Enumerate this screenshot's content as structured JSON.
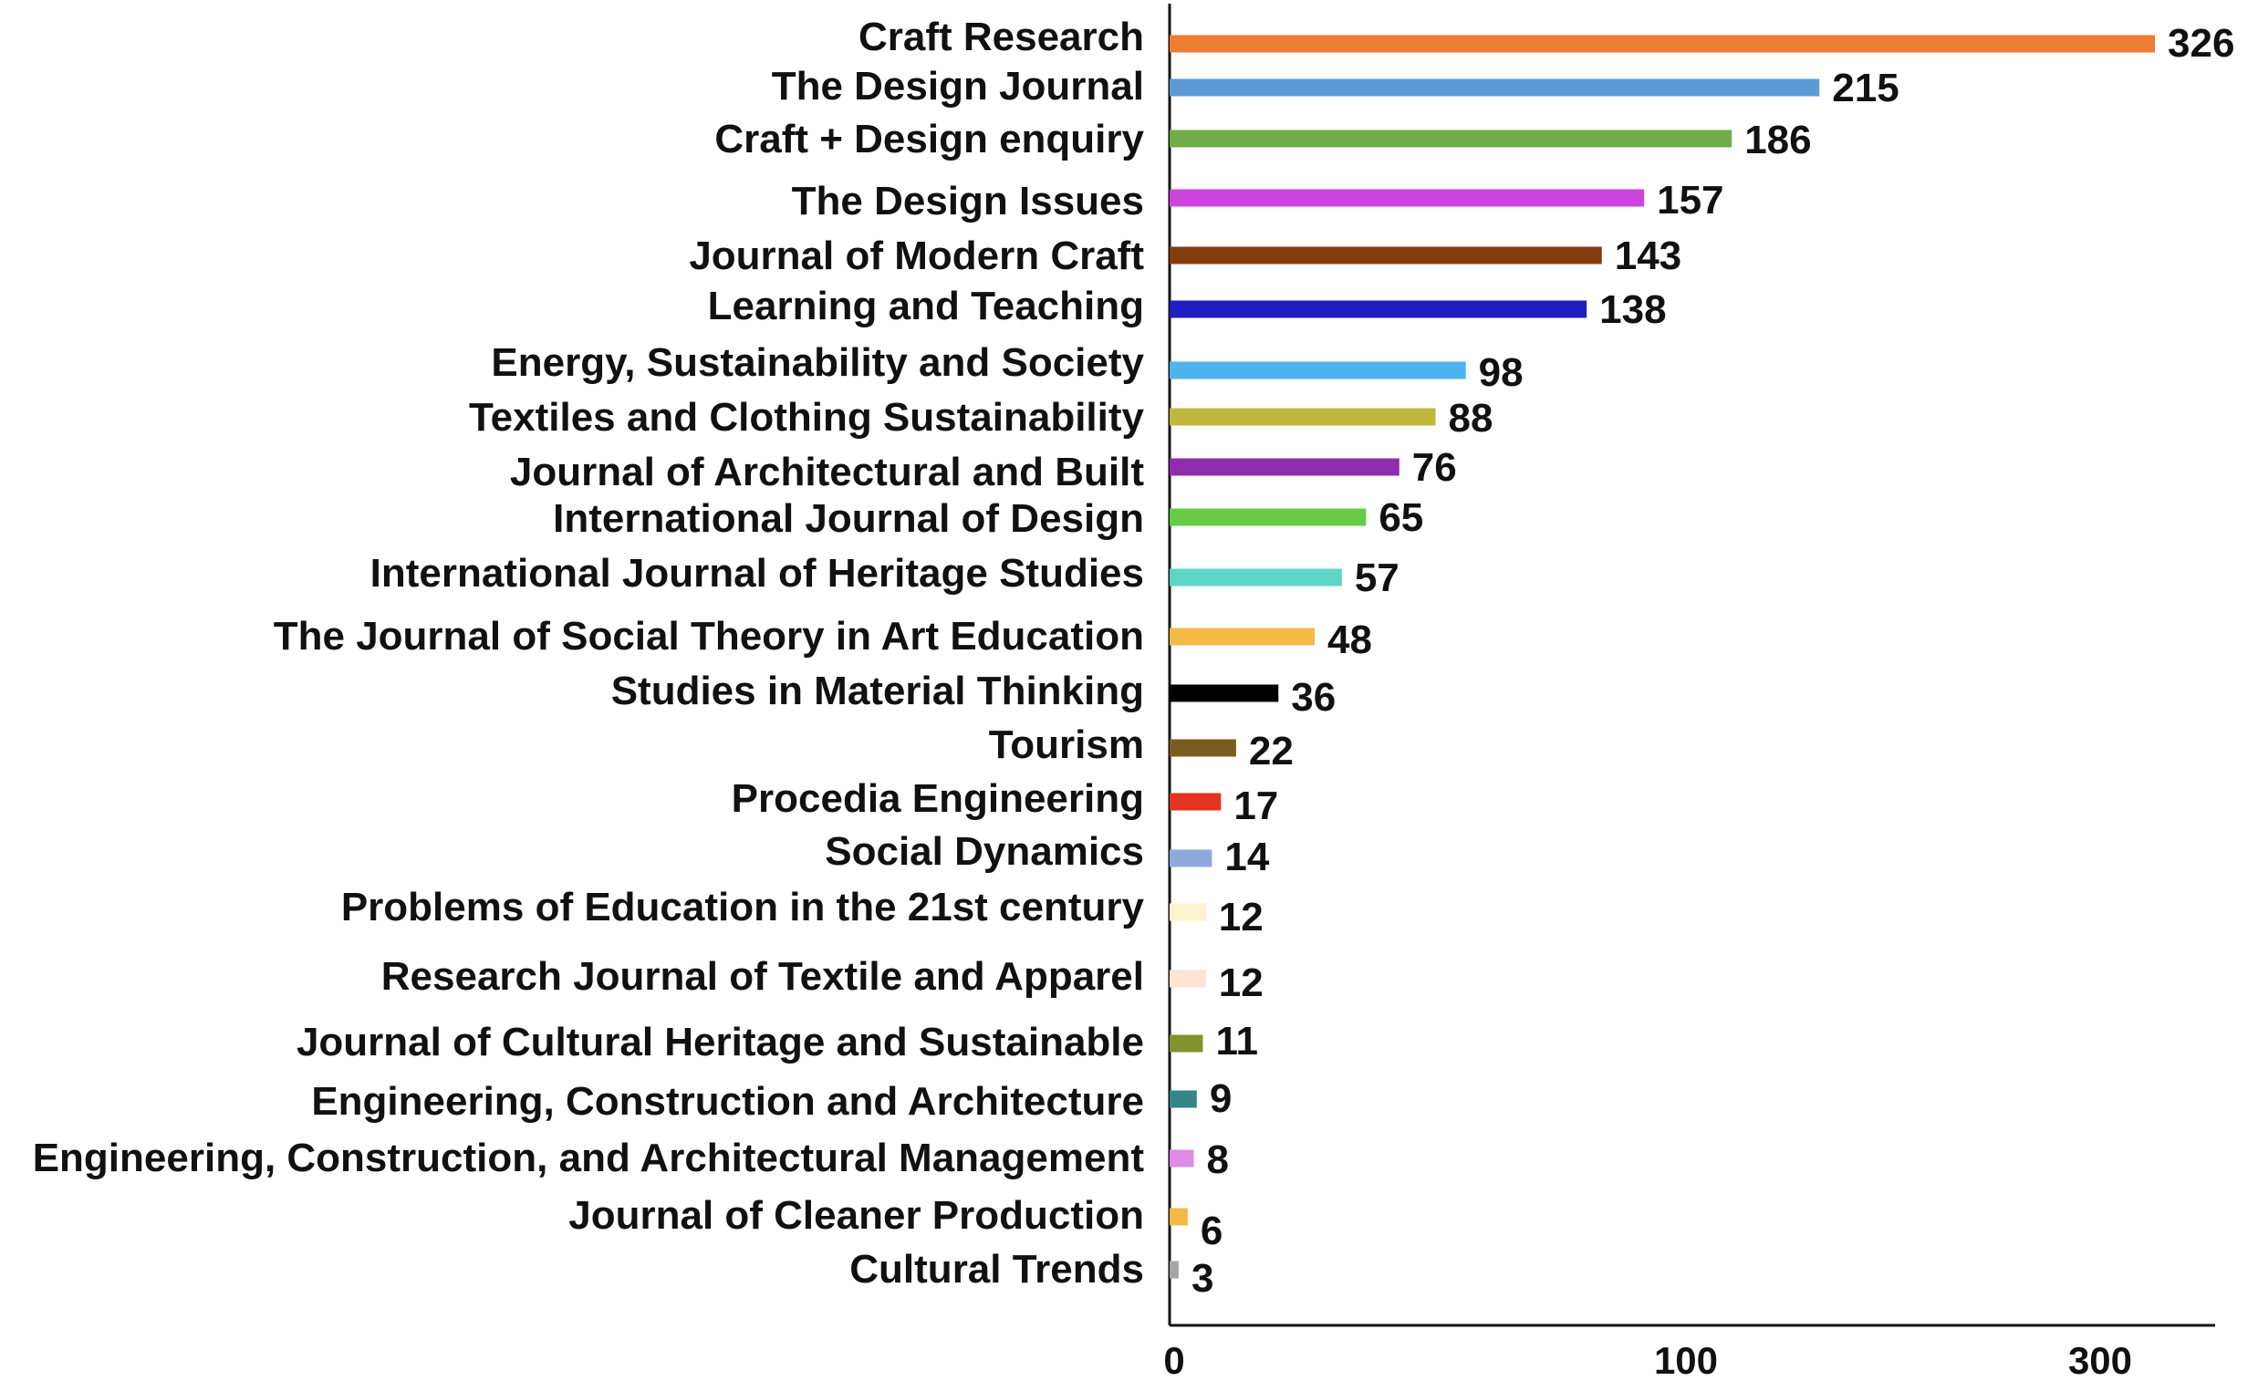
{
  "chart_data": {
    "type": "bar",
    "orientation": "horizontal",
    "title": "",
    "xlabel": "",
    "ylabel": "",
    "categories": [
      "Craft Research",
      "The Design Journal",
      "Craft + Design enquiry",
      "The Design Issues",
      "Journal of Modern Craft",
      "Learning and Teaching",
      "Energy, Sustainability and Society",
      "Textiles and Clothing Sustainability",
      "Journal of Architectural and Built",
      "International Journal of Design",
      "International Journal of Heritage Studies",
      "The Journal of Social Theory in Art Education",
      "Studies in Material Thinking",
      "Tourism",
      "Procedia Engineering",
      "Social Dynamics",
      "Problems of Education in the 21st century",
      "Research Journal of Textile and Apparel",
      "Journal of Cultural Heritage and Sustainable",
      "Engineering, Construction and Architecture",
      "Engineering, Construction, and Architectural Management",
      "Journal of Cleaner Production",
      "Cultural Trends"
    ],
    "values": [
      326,
      215,
      186,
      157,
      143,
      138,
      98,
      88,
      76,
      65,
      57,
      48,
      36,
      22,
      17,
      14,
      12,
      12,
      11,
      9,
      8,
      6,
      3
    ],
    "value_labels": [
      "326",
      "215",
      "186",
      "157",
      "143",
      "138",
      "98",
      "88",
      "76",
      "65",
      "57",
      "48",
      "36",
      "22",
      "17",
      "14",
      "12",
      "12",
      "11",
      "9",
      "8",
      "6",
      "3"
    ],
    "colors": [
      "#ED7D31",
      "#5B9BD5",
      "#70AD47",
      "#CC44DD",
      "#843C0C",
      "#1F1FBF",
      "#4DB3EE",
      "#BFB73E",
      "#8E2CAD",
      "#66CC44",
      "#5DD6C6",
      "#F5BA45",
      "#000000",
      "#7A5C1E",
      "#E53322",
      "#8EAADB",
      "#FCF3CF",
      "#FCE4D6",
      "#83922C",
      "#35868A",
      "#E08BE8",
      "#F5BA45",
      "#A6A6A6"
    ],
    "x_ticks": [
      "0",
      "100",
      "300"
    ],
    "xlim": [
      0,
      326
    ],
    "grid": false,
    "legend": "none"
  }
}
